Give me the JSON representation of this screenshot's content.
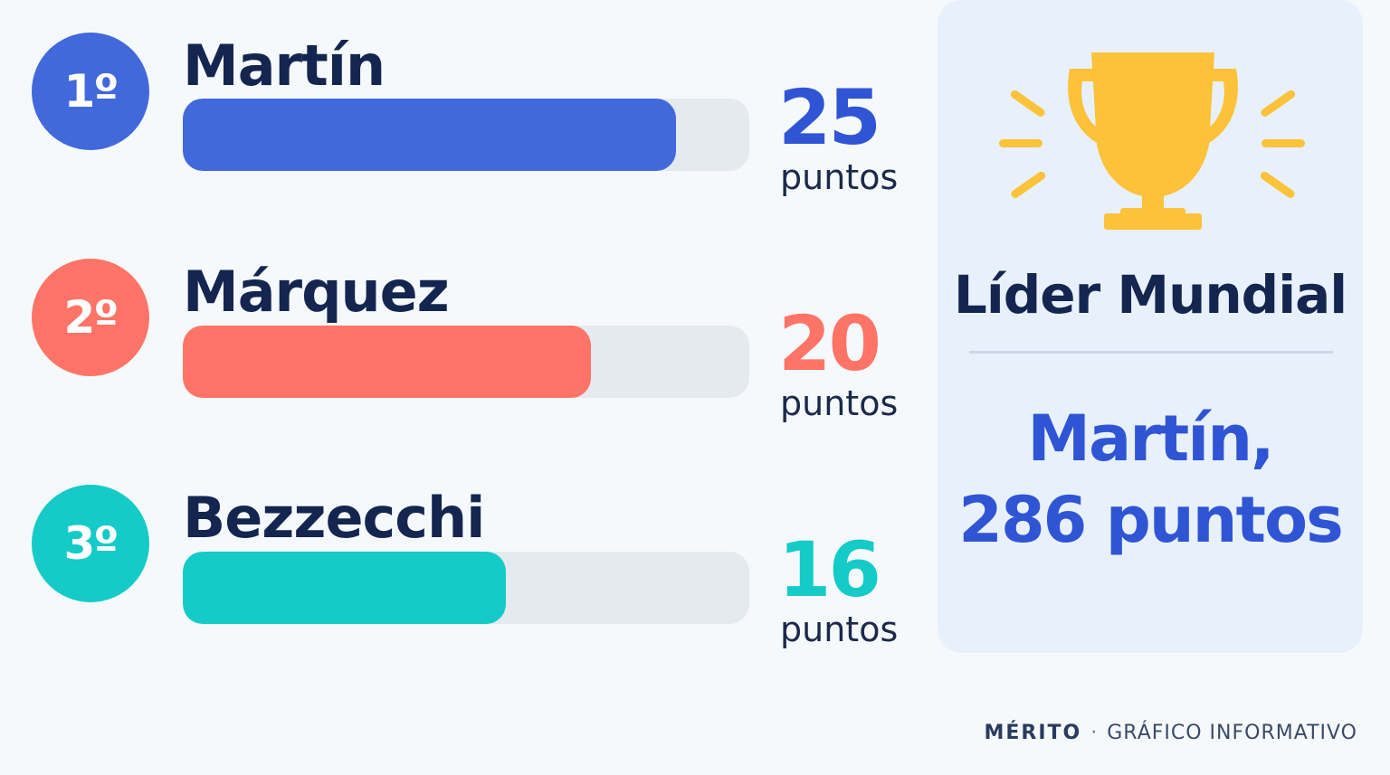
{
  "chart_data": {
    "type": "bar",
    "orientation": "horizontal",
    "max_value": 25,
    "unit_label": "puntos",
    "riders": [
      {
        "rank": "1º",
        "name": "Martín",
        "points": 25,
        "progress": 0.87,
        "color": "#4169dc"
      },
      {
        "rank": "2º",
        "name": "Márquez",
        "points": 20,
        "progress": 0.72,
        "color": "#ff7466"
      },
      {
        "rank": "3º",
        "name": "Bezzecchi",
        "points": 16,
        "progress": 0.57,
        "color": "#14cbc8"
      }
    ]
  },
  "leader_panel": {
    "title": "Líder Mundial",
    "leader_line1": "Martín,",
    "leader_line2": "286 puntos",
    "icon": "trophy-icon",
    "icon_color": "#fbc23a"
  },
  "footer": {
    "brand": "MÉRITO",
    "separator": "·",
    "caption": "GRÁFICO INFORMATIVO"
  }
}
